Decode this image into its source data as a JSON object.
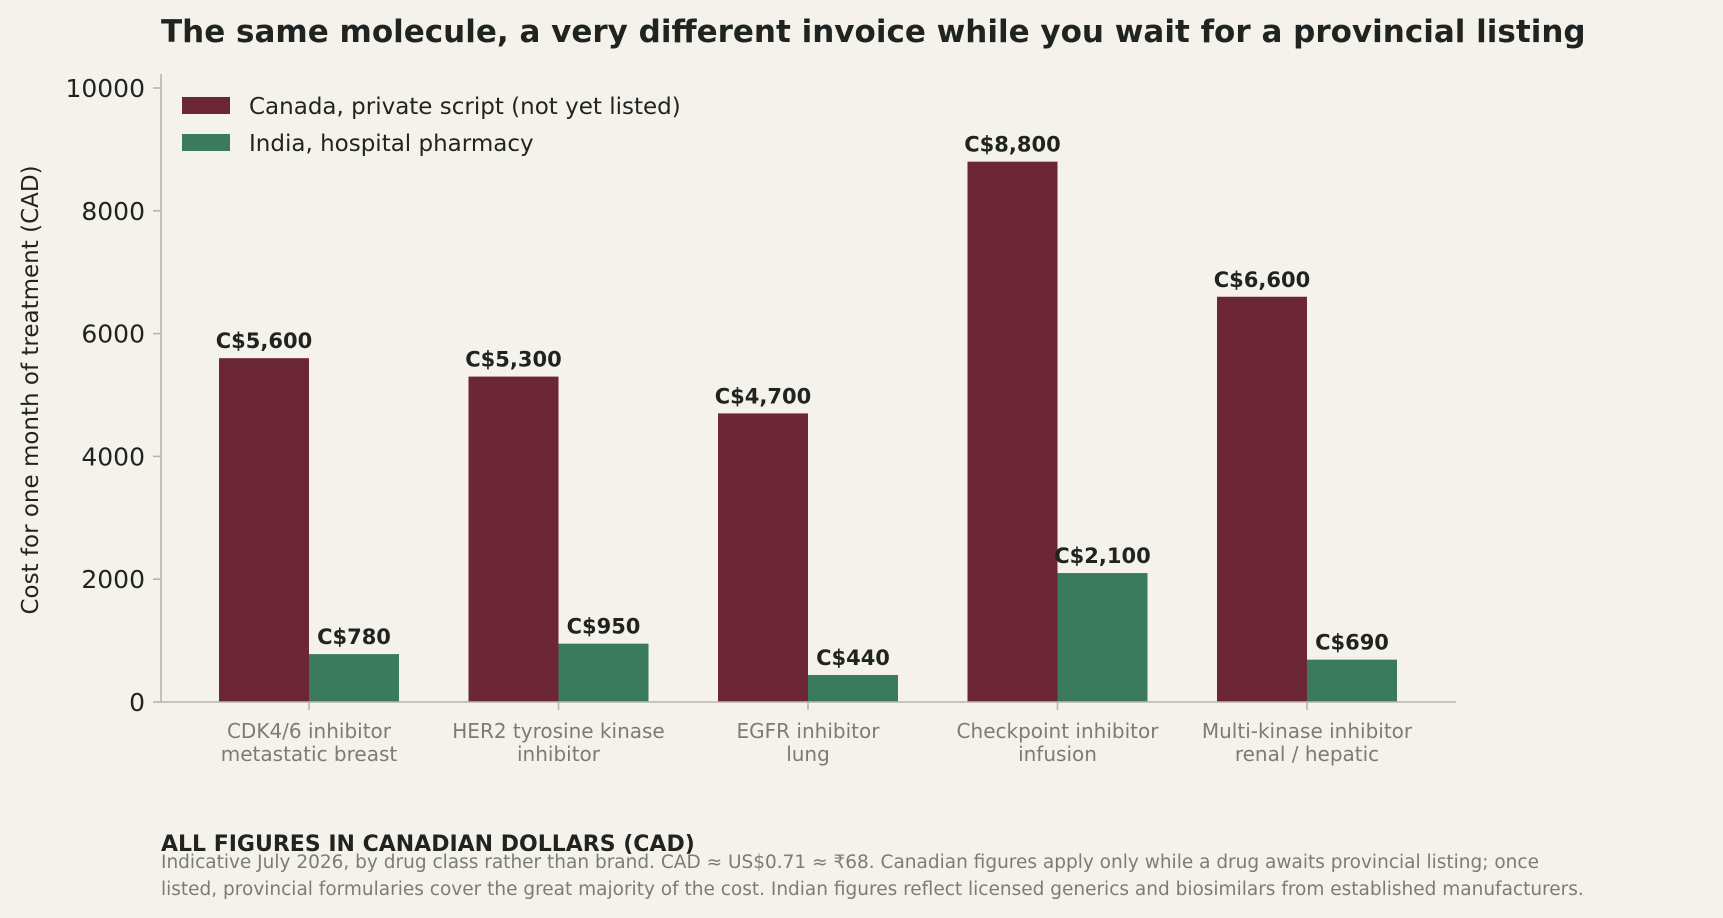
{
  "colors": {
    "background": "#f5f2ec",
    "canada": "#6b2737",
    "india": "#3c7a60",
    "axis": "#b8b6a6",
    "text": "#1f2421",
    "muted": "#7a7c76"
  },
  "chart_data": {
    "type": "bar",
    "title": "The same molecule, a very different invoice while you wait for a provincial listing",
    "ylabel": "Cost for one month of treatment (CAD)",
    "xlabel": "",
    "ylim": [
      0,
      10000
    ],
    "yticks": [
      "0",
      "2000",
      "4000",
      "6000",
      "8000",
      "10000"
    ],
    "ytick_values": [
      0,
      2000,
      4000,
      6000,
      8000,
      10000
    ],
    "grid": false,
    "legend_position": "top-left",
    "categories": [
      [
        "CDK4/6 inhibitor",
        "metastatic breast"
      ],
      [
        "HER2 tyrosine kinase",
        "inhibitor"
      ],
      [
        "EGFR inhibitor",
        "lung"
      ],
      [
        "Checkpoint inhibitor",
        "infusion"
      ],
      [
        "Multi-kinase inhibitor",
        "renal / hepatic"
      ]
    ],
    "series": [
      {
        "name": "Canada, private script (not yet listed)",
        "values": [
          5600,
          5300,
          4700,
          8800,
          6600
        ],
        "labels": [
          "C$5,600",
          "C$5,300",
          "C$4,700",
          "C$8,800",
          "C$6,600"
        ]
      },
      {
        "name": "India, hospital pharmacy",
        "values": [
          780,
          950,
          440,
          2100,
          690
        ],
        "labels": [
          "C$780",
          "C$950",
          "C$440",
          "C$2,100",
          "C$690"
        ]
      }
    ]
  },
  "footer": {
    "heading": "ALL FIGURES IN CANADIAN DOLLARS (CAD)",
    "note_line1": "Indicative July 2026, by drug class rather than brand. CAD ≈ US$0.71 ≈ ₹68. Canadian figures apply only while a drug awaits provincial listing; once",
    "note_line2": "listed, provincial formularies cover the great majority of the cost. Indian figures reflect licensed generics and biosimilars from established manufacturers."
  }
}
